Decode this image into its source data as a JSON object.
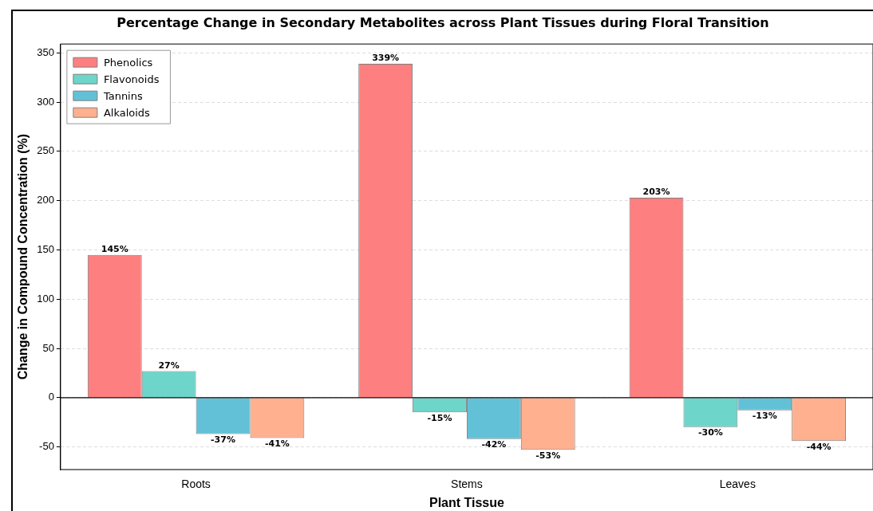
{
  "chart_data": {
    "type": "bar",
    "title": "Percentage Change in Secondary Metabolites across Plant Tissues during Floral Transition",
    "xlabel": "Plant Tissue",
    "ylabel": "Change in Compound Concentration (%)",
    "categories": [
      "Roots",
      "Stems",
      "Leaves"
    ],
    "series": [
      {
        "name": "Phenolics",
        "color": "#fe7f7f",
        "values": [
          145,
          339,
          203
        ],
        "value_labels": [
          "145%",
          "339%",
          "203%"
        ]
      },
      {
        "name": "Flavonoids",
        "color": "#6dd5c9",
        "values": [
          27,
          -15,
          -30
        ],
        "value_labels": [
          "27%",
          "-15%",
          "-30%"
        ]
      },
      {
        "name": "Tannins",
        "color": "#62c1d6",
        "values": [
          -37,
          -42,
          -13
        ],
        "value_labels": [
          "-37%",
          "-42%",
          "-13%"
        ]
      },
      {
        "name": "Alkaloids",
        "color": "#ffb08f",
        "values": [
          -41,
          -53,
          -44
        ],
        "value_labels": [
          "-41%",
          "-53%",
          "-44%"
        ]
      }
    ],
    "ylim": [
      -73,
      359
    ],
    "yticks": [
      -50,
      0,
      50,
      100,
      150,
      200,
      250,
      300,
      350
    ],
    "ref_lines": [
      {
        "axis": "y",
        "value": 0,
        "color": "#000000"
      }
    ],
    "grid": "y",
    "legend": "top left"
  }
}
